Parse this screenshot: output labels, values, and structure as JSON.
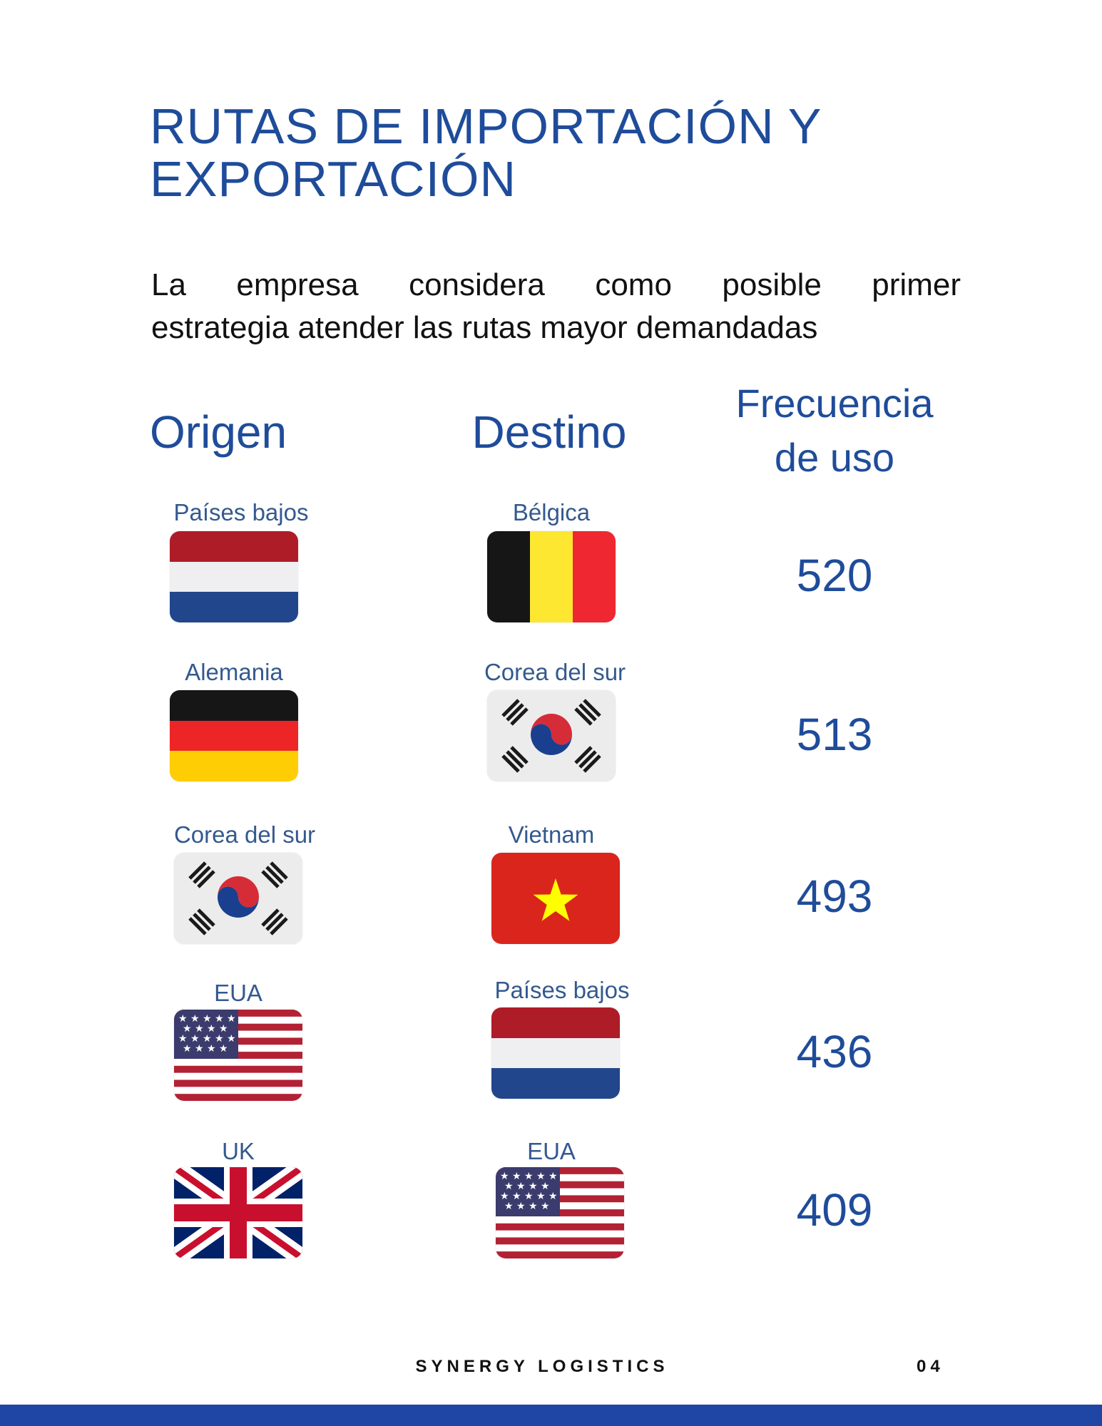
{
  "title": {
    "line1": "RUTAS DE IMPORTACIÓN Y",
    "line2": "EXPORTACIÓN"
  },
  "intro": {
    "line1_words": [
      "La",
      "empresa",
      "considera",
      "como",
      "posible",
      "primer"
    ],
    "line2": "estrategia atender las rutas mayor demandadas"
  },
  "headers": {
    "origin": "Origen",
    "destination": "Destino",
    "frequency_line1": "Frecuencia",
    "frequency_line2": "de uso"
  },
  "routes": [
    {
      "origin": "Países bajos",
      "origin_flag": "netherlands-flag",
      "destination": "Bélgica",
      "destination_flag": "belgium-flag",
      "frequency": "520"
    },
    {
      "origin": "Alemania",
      "origin_flag": "germany-flag",
      "destination": "Corea del sur",
      "destination_flag": "south-korea-flag",
      "frequency": "513"
    },
    {
      "origin": "Corea del sur",
      "origin_flag": "south-korea-flag",
      "destination": "Vietnam",
      "destination_flag": "vietnam-flag",
      "frequency": "493"
    },
    {
      "origin": "EUA",
      "origin_flag": "usa-flag",
      "destination": "Países bajos",
      "destination_flag": "netherlands-flag",
      "frequency": "436"
    },
    {
      "origin": "UK",
      "origin_flag": "uk-flag",
      "destination": "EUA",
      "destination_flag": "usa-flag",
      "frequency": "409"
    }
  ],
  "footer": {
    "brand": "SYNERGY LOGISTICS",
    "page": "04"
  },
  "colors": {
    "accent": "#1f4c9a",
    "bar": "#1f45a5"
  }
}
